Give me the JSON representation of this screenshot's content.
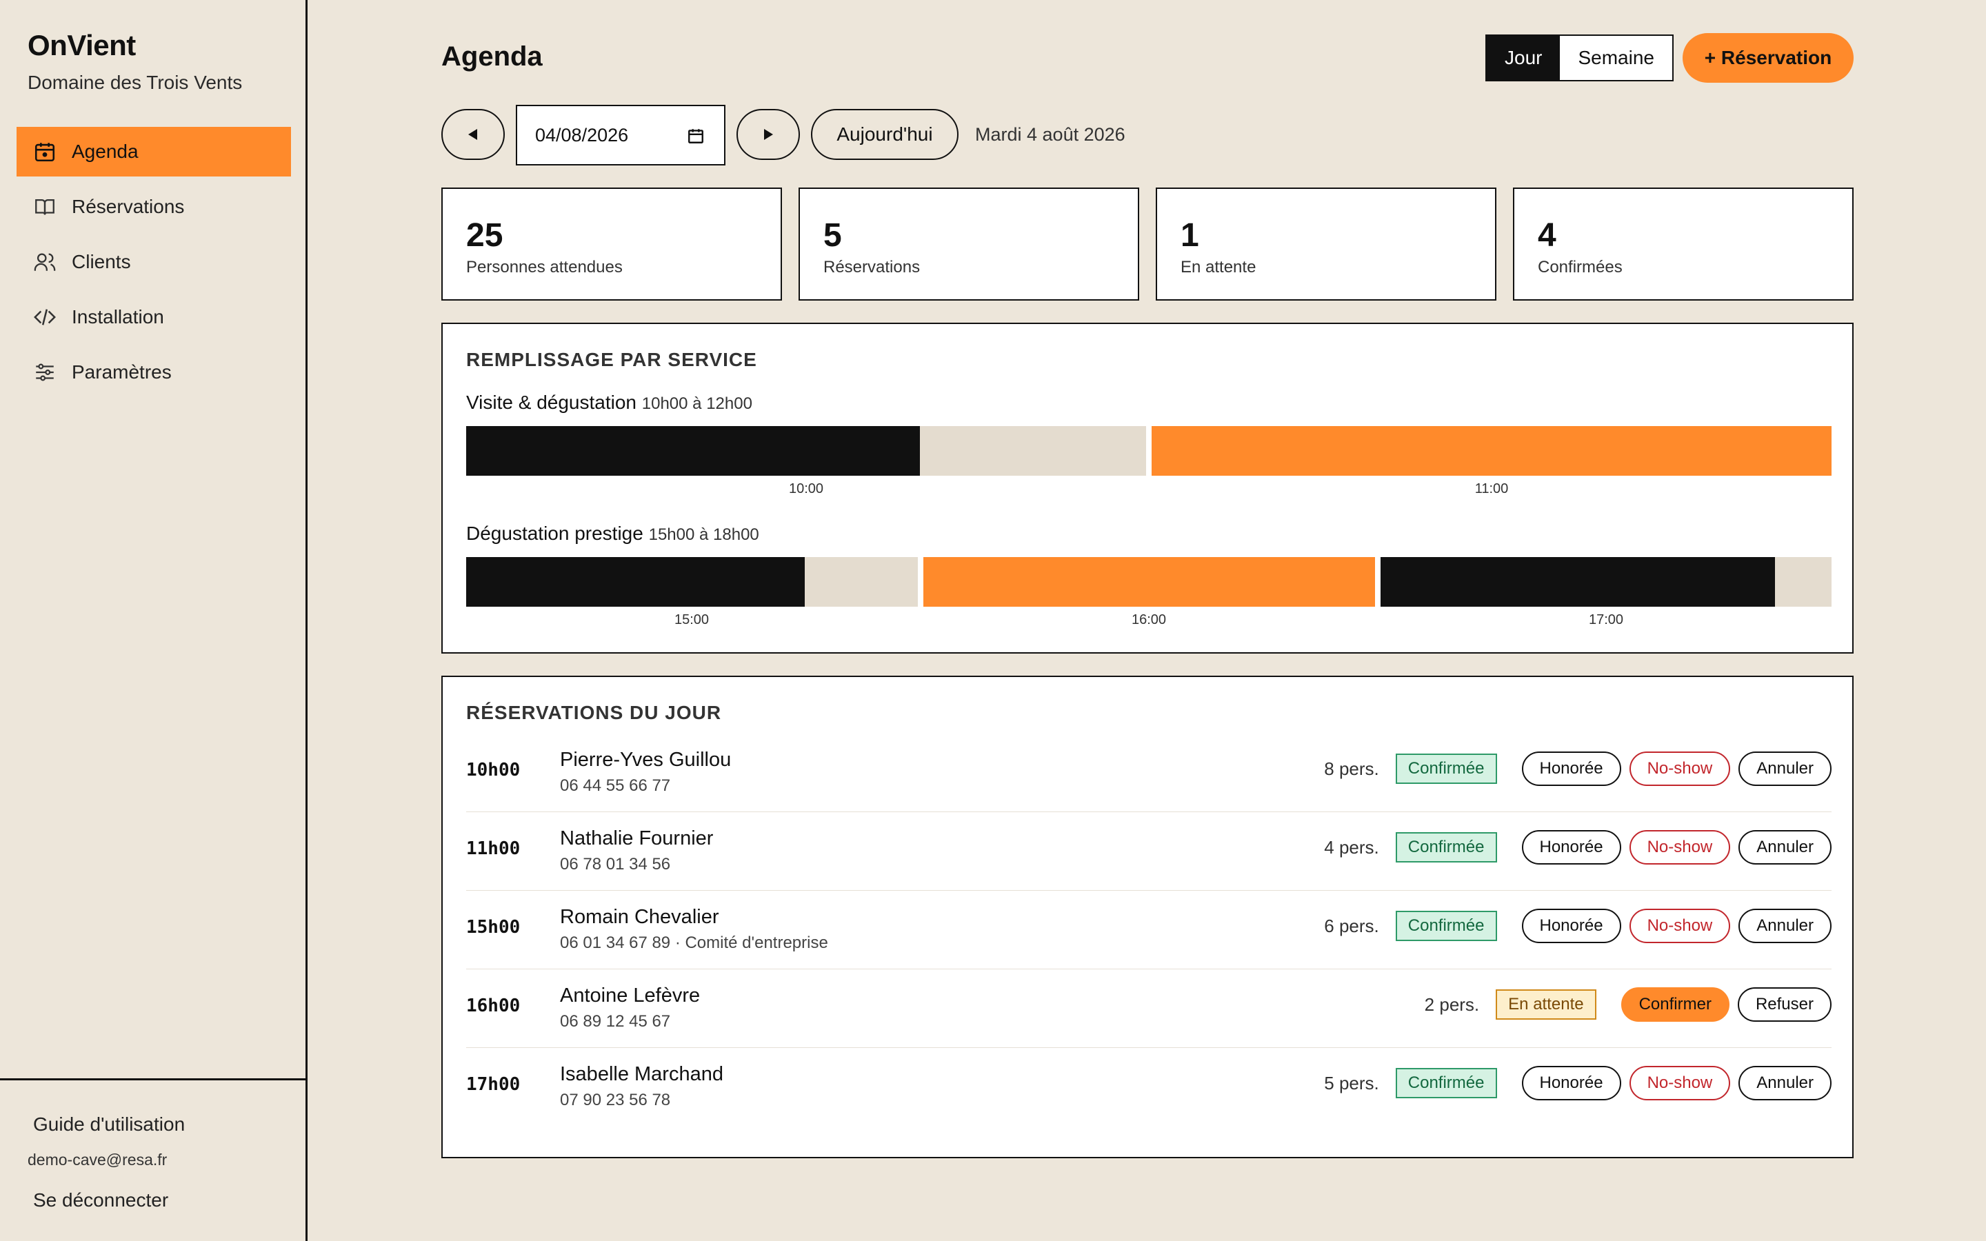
{
  "brand": {
    "name": "OnVient",
    "subtitle": "Domaine des Trois Vents"
  },
  "nav": [
    {
      "label": "Agenda",
      "icon": "calendar-icon",
      "active": true
    },
    {
      "label": "Réservations",
      "icon": "book-icon",
      "active": false
    },
    {
      "label": "Clients",
      "icon": "users-icon",
      "active": false
    },
    {
      "label": "Installation",
      "icon": "code-icon",
      "active": false
    },
    {
      "label": "Paramètres",
      "icon": "sliders-icon",
      "active": false
    }
  ],
  "footer": {
    "guide": "Guide d'utilisation",
    "email": "demo-cave@resa.fr",
    "logout": "Se déconnecter"
  },
  "header": {
    "title": "Agenda",
    "view_day": "Jour",
    "view_week": "Semaine",
    "new_button": "+ Réservation"
  },
  "datebar": {
    "date_value": "04/08/2026",
    "today_button": "Aujourd'hui",
    "date_text": "Mardi 4 août 2026"
  },
  "stats": [
    {
      "value": "25",
      "label": "Personnes attendues"
    },
    {
      "value": "5",
      "label": "Réservations"
    },
    {
      "value": "1",
      "label": "En attente"
    },
    {
      "value": "4",
      "label": "Confirmées"
    }
  ],
  "occupancy": {
    "title": "REMPLISSAGE PAR SERVICE",
    "services": [
      {
        "name": "Visite & dégustation",
        "hours": "10h00 à 12h00",
        "slots": [
          {
            "label": "10:00",
            "fill": 0.667,
            "color": "#111111"
          },
          {
            "label": "11:00",
            "fill": 1.0,
            "color": "#ff8a2b"
          }
        ]
      },
      {
        "name": "Dégustation prestige",
        "hours": "15h00 à 18h00",
        "slots": [
          {
            "label": "15:00",
            "fill": 0.75,
            "color": "#111111"
          },
          {
            "label": "16:00",
            "fill": 1.0,
            "color": "#ff8a2b"
          },
          {
            "label": "17:00",
            "fill": 0.875,
            "color": "#111111"
          }
        ]
      }
    ]
  },
  "reservations": {
    "title": "RÉSERVATIONS DU JOUR",
    "items": [
      {
        "time": "10h00",
        "name": "Pierre-Yves Guillou",
        "phone": "06 44 55 66 77",
        "count": "8 pers.",
        "status": "Confirmée",
        "status_kind": "ok",
        "actions": [
          "Honorée",
          "No-show",
          "Annuler"
        ]
      },
      {
        "time": "11h00",
        "name": "Nathalie Fournier",
        "phone": "06 78 01 34 56",
        "count": "4 pers.",
        "status": "Confirmée",
        "status_kind": "ok",
        "actions": [
          "Honorée",
          "No-show",
          "Annuler"
        ]
      },
      {
        "time": "15h00",
        "name": "Romain Chevalier",
        "phone": "06 01 34 67 89 · Comité d'entreprise",
        "count": "6 pers.",
        "status": "Confirmée",
        "status_kind": "ok",
        "actions": [
          "Honorée",
          "No-show",
          "Annuler"
        ]
      },
      {
        "time": "16h00",
        "name": "Antoine Lefèvre",
        "phone": "06 89 12 45 67",
        "count": "2 pers.",
        "status": "En attente",
        "status_kind": "wait",
        "actions": [
          "Confirmer",
          "Refuser"
        ]
      },
      {
        "time": "17h00",
        "name": "Isabelle Marchand",
        "phone": "07 90 23 56 78",
        "count": "5 pers.",
        "status": "Confirmée",
        "status_kind": "ok",
        "actions": [
          "Honorée",
          "No-show",
          "Annuler"
        ]
      }
    ]
  },
  "colors": {
    "accent": "#ff8a2b",
    "background": "#ede6da",
    "ink": "#111111",
    "empty": "#e4dccf"
  }
}
